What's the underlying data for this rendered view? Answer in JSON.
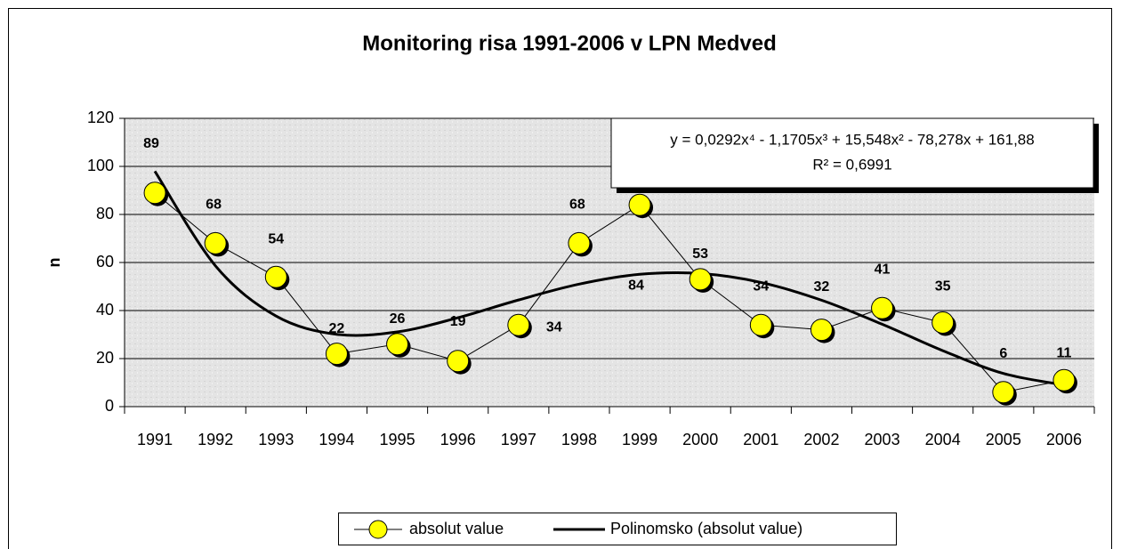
{
  "chart_data": {
    "type": "line",
    "title": "Monitoring risa 1991-2006 v LPN Medved",
    "ylabel": "n",
    "categories": [
      "1991",
      "1992",
      "1993",
      "1994",
      "1995",
      "1996",
      "1997",
      "1998",
      "1999",
      "2000",
      "2001",
      "2002",
      "2003",
      "2004",
      "2005",
      "2006"
    ],
    "series": [
      {
        "name": "absolut value",
        "color": "#ffff00",
        "values": [
          89,
          68,
          54,
          22,
          26,
          19,
          34,
          68,
          84,
          53,
          34,
          32,
          41,
          35,
          6,
          11
        ]
      },
      {
        "name": "Polinomsko (absolut value)",
        "color": "#000000",
        "values": [
          98.0,
          58.6,
          37.7,
          30.1,
          31.1,
          37.0,
          44.4,
          51.0,
          55.1,
          55.4,
          51.7,
          44.3,
          34.3,
          23.3,
          13.8,
          9.0
        ]
      }
    ],
    "annotations": [
      "y = 0,0292x⁴ - 1,1705x³ + 15,548x² - 78,278x + 161,88",
      "R² = 0,6991"
    ],
    "ylim": [
      0,
      120
    ],
    "yticks": [
      0,
      20,
      40,
      60,
      80,
      100,
      120
    ],
    "grid": true,
    "legend": "bottom",
    "data_labels": true
  }
}
